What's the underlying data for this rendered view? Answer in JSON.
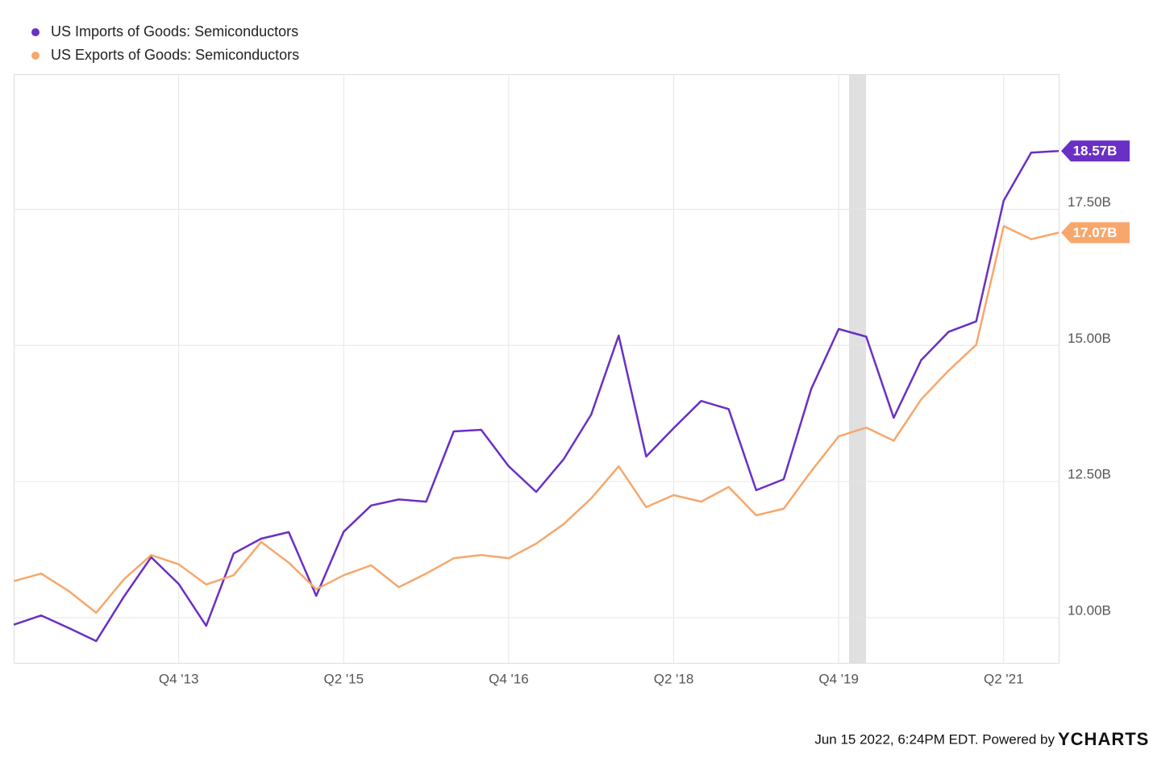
{
  "chart_data": {
    "type": "line",
    "categories": [
      null,
      null,
      null,
      null,
      null,
      null,
      "Q4 '13",
      null,
      null,
      null,
      null,
      null,
      "Q2 '15",
      null,
      null,
      null,
      null,
      null,
      "Q4 '16",
      null,
      null,
      null,
      null,
      null,
      "Q2 '18",
      null,
      null,
      null,
      null,
      null,
      "Q4 '19",
      null,
      null,
      null,
      null,
      null,
      "Q2 '21",
      null,
      null
    ],
    "series": [
      {
        "name": "US Imports of Goods: Semiconductors",
        "color": "#6a2fc5",
        "last_label": "18.57B",
        "values": [
          9.87,
          10.04,
          9.81,
          9.57,
          10.38,
          11.11,
          10.62,
          9.85,
          11.18,
          11.45,
          11.57,
          10.4,
          11.58,
          12.06,
          12.17,
          12.13,
          13.42,
          13.45,
          12.78,
          12.31,
          12.91,
          13.73,
          15.18,
          12.96,
          13.48,
          13.98,
          13.83,
          12.34,
          12.54,
          14.2,
          15.3,
          15.16,
          13.67,
          14.73,
          15.25,
          15.44,
          17.66,
          18.54,
          18.57
        ]
      },
      {
        "name": "US Exports of Goods: Semiconductors",
        "color": "#f7a76c",
        "last_label": "17.07B",
        "values": [
          10.67,
          10.81,
          10.49,
          10.09,
          10.7,
          11.15,
          10.98,
          10.61,
          10.78,
          11.39,
          11.01,
          10.52,
          10.78,
          10.96,
          10.56,
          10.81,
          11.09,
          11.15,
          11.09,
          11.36,
          11.72,
          12.19,
          12.78,
          12.03,
          12.25,
          12.13,
          12.4,
          11.88,
          12.0,
          12.69,
          13.33,
          13.49,
          13.25,
          14.01,
          14.54,
          15.01,
          17.19,
          16.95,
          17.07
        ]
      }
    ],
    "ylim": [
      9.17,
      19.98
    ],
    "yticks": [
      {
        "value": 10,
        "label": "10.00B"
      },
      {
        "value": 12.5,
        "label": "12.50B"
      },
      {
        "value": 15,
        "label": "15.00B"
      },
      {
        "value": 17.5,
        "label": "17.50B"
      }
    ],
    "grid": true,
    "legend": "top-left",
    "footer": {
      "text": "Jun 15 2022, 6:24PM EDT. Powered by",
      "brand": "YCHARTS"
    }
  }
}
